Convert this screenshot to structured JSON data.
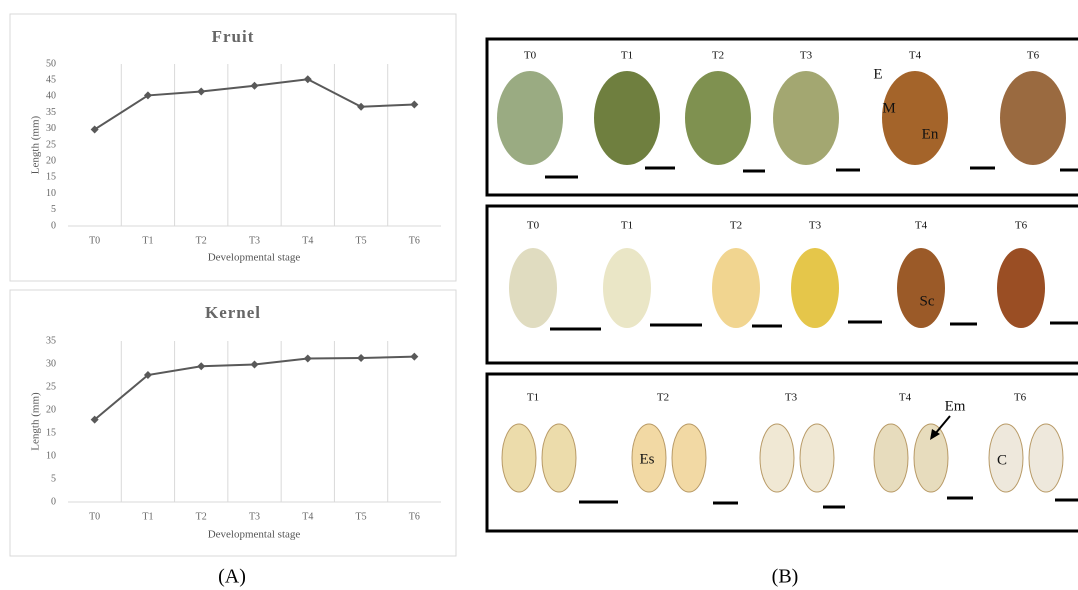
{
  "chart_data": [
    {
      "type": "line",
      "title": "Fruit",
      "x_label": "Developmental stage",
      "y_label": "Length (mm)",
      "categories": [
        "T0",
        "T1",
        "T2",
        "T3",
        "T4",
        "T5",
        "T6"
      ],
      "values": [
        29.8,
        40.3,
        41.5,
        43.3,
        45.3,
        36.8,
        37.5
      ],
      "color": "#595959",
      "ylim": [
        0,
        50
      ],
      "yticks": [
        0,
        5,
        10,
        15,
        20,
        25,
        30,
        35,
        40,
        45,
        50
      ],
      "grid": true
    },
    {
      "type": "line",
      "title": "Kernel",
      "x_label": "Developmental stage",
      "y_label": "Length (mm)",
      "categories": [
        "T0",
        "T1",
        "T2",
        "T3",
        "T4",
        "T5",
        "T6"
      ],
      "values": [
        17.9,
        27.6,
        29.5,
        29.9,
        31.2,
        31.3,
        31.6
      ],
      "color": "#595959",
      "ylim": [
        0,
        35
      ],
      "yticks": [
        0,
        5,
        10,
        15,
        20,
        25,
        30,
        35
      ],
      "grid": true
    }
  ],
  "panels": [
    "(A)",
    "(B)"
  ],
  "photos": [
    {
      "labels": [
        "T0",
        "T1",
        "T2",
        "T3",
        "T4",
        "T6"
      ],
      "annotations": [
        "E",
        "M",
        "En"
      ]
    },
    {
      "labels": [
        "T0",
        "T1",
        "T2",
        "T3",
        "T4",
        "T6"
      ],
      "annotations": [
        "Sc"
      ]
    },
    {
      "labels": [
        "T1",
        "T2",
        "T3",
        "T4",
        "T6"
      ],
      "annotations": [
        "Es",
        "Em",
        "C"
      ]
    }
  ]
}
